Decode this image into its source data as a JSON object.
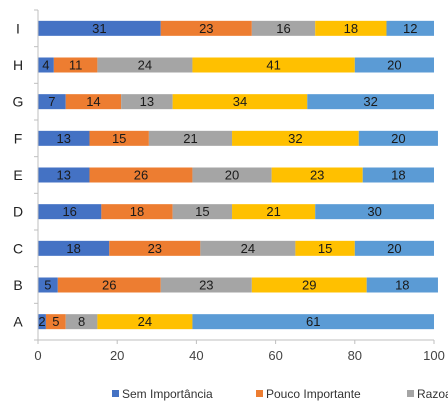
{
  "chart_data": {
    "type": "bar",
    "orientation": "horizontal",
    "stacked": true,
    "categories": [
      "A",
      "B",
      "C",
      "D",
      "E",
      "F",
      "G",
      "H",
      "I"
    ],
    "series": [
      {
        "name": "Sem Importância",
        "color": "#4472C4",
        "values": [
          2,
          5,
          18,
          16,
          13,
          13,
          7,
          4,
          31
        ]
      },
      {
        "name": "Pouco Importante",
        "color": "#ED7D31",
        "values": [
          5,
          26,
          23,
          18,
          26,
          15,
          14,
          11,
          23
        ]
      },
      {
        "name": "Razoave",
        "color": "#A5A5A5",
        "values": [
          8,
          23,
          24,
          15,
          20,
          21,
          13,
          24,
          16
        ]
      },
      {
        "name": "",
        "color": "#FFC000",
        "values": [
          24,
          29,
          15,
          21,
          23,
          32,
          34,
          41,
          18
        ]
      },
      {
        "name": "",
        "color": "#5B9BD5",
        "values": [
          61,
          18,
          20,
          30,
          18,
          20,
          32,
          20,
          12
        ]
      }
    ],
    "xlim": [
      0,
      100
    ],
    "xticks": [
      "0",
      "20",
      "40",
      "60",
      "80",
      "100"
    ],
    "grid": false,
    "legend": "bottom"
  }
}
